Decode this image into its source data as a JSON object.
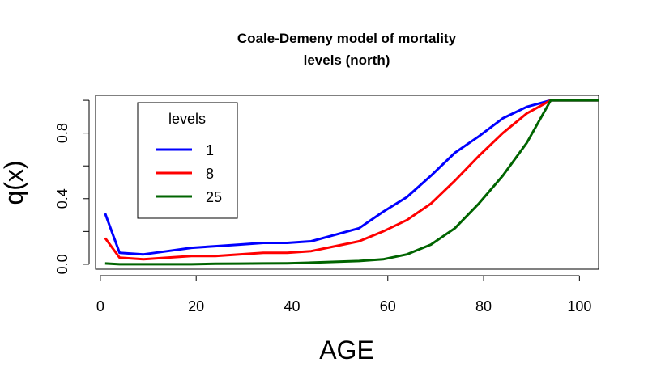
{
  "chart_data": {
    "type": "line",
    "title": "Coale-Demeny model of mortality levels (north)",
    "title_lines": [
      "Coale-Demeny model of mortality",
      "levels (north)"
    ],
    "xlabel": "AGE",
    "ylabel": "q(x)",
    "xlim": [
      -1,
      104
    ],
    "ylim": [
      -0.03,
      1.03
    ],
    "x_ticks": [
      0,
      20,
      40,
      60,
      80,
      100
    ],
    "y_ticks": [
      0.0,
      0.4,
      0.8
    ],
    "y_tick_labels": [
      "0.0",
      "0.4",
      "0.8"
    ],
    "y_minor_ticks": [
      0.2,
      0.6,
      1.0
    ],
    "grid": false,
    "legend": {
      "title": "levels",
      "placement": "top-left"
    },
    "series": [
      {
        "name": "1",
        "color": "#0000FF",
        "x": [
          1,
          4,
          9,
          14,
          19,
          24,
          29,
          34,
          39,
          44,
          49,
          54,
          59,
          64,
          69,
          74,
          79,
          84,
          89,
          94,
          104
        ],
        "y": [
          0.31,
          0.07,
          0.06,
          0.08,
          0.1,
          0.11,
          0.12,
          0.13,
          0.13,
          0.14,
          0.18,
          0.22,
          0.32,
          0.41,
          0.54,
          0.68,
          0.78,
          0.89,
          0.96,
          1.0,
          1.0
        ]
      },
      {
        "name": "8",
        "color": "#FF0000",
        "x": [
          1,
          4,
          9,
          14,
          19,
          24,
          29,
          34,
          39,
          44,
          49,
          54,
          59,
          64,
          69,
          74,
          79,
          84,
          89,
          94,
          104
        ],
        "y": [
          0.16,
          0.04,
          0.03,
          0.04,
          0.05,
          0.05,
          0.06,
          0.07,
          0.07,
          0.08,
          0.11,
          0.14,
          0.2,
          0.27,
          0.37,
          0.51,
          0.66,
          0.8,
          0.92,
          1.0,
          1.0
        ]
      },
      {
        "name": "25",
        "color": "#006400",
        "x": [
          1,
          4,
          9,
          14,
          19,
          24,
          29,
          34,
          39,
          44,
          49,
          54,
          59,
          64,
          69,
          74,
          79,
          84,
          89,
          94,
          104
        ],
        "y": [
          0.005,
          0.0,
          0.0,
          0.0,
          0.0,
          0.003,
          0.004,
          0.005,
          0.006,
          0.01,
          0.015,
          0.02,
          0.03,
          0.06,
          0.12,
          0.22,
          0.37,
          0.54,
          0.74,
          1.0,
          1.0
        ]
      }
    ]
  }
}
